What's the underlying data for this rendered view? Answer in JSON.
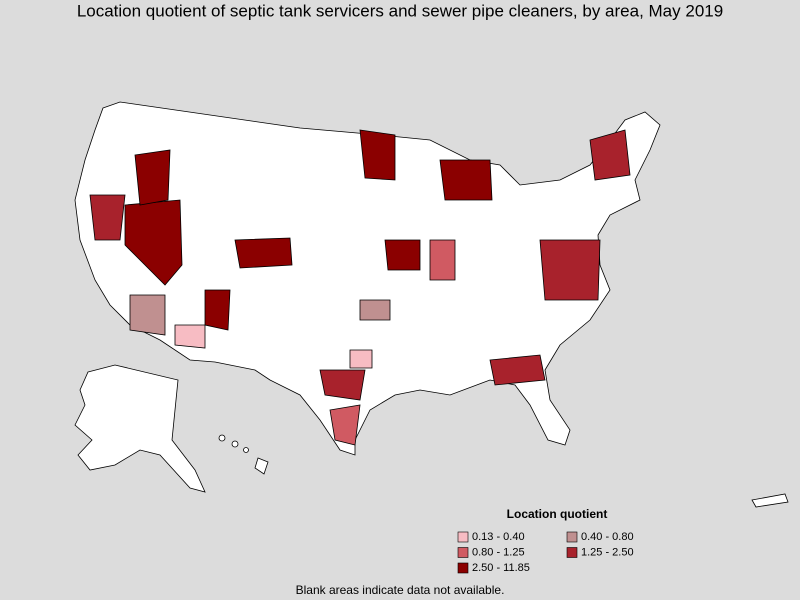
{
  "title": "Location quotient of septic tank servicers and sewer pipe cleaners, by area, May 2019",
  "legend": {
    "title": "Location quotient",
    "items": [
      {
        "label": "0.13 - 0.40",
        "color": "#f7bcc3"
      },
      {
        "label": "0.40 - 0.80",
        "color": "#c09090"
      },
      {
        "label": "0.80 - 1.25",
        "color": "#d05a62"
      },
      {
        "label": "1.25 - 2.50",
        "color": "#a8222c"
      },
      {
        "label": "2.50 - 11.85",
        "color": "#8b0000"
      }
    ]
  },
  "note": "Blank areas indicate data not available."
}
